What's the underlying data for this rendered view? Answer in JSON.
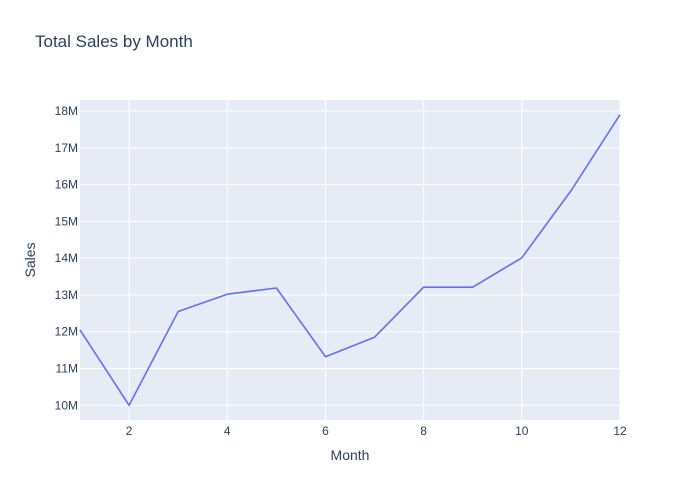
{
  "chart_data": {
    "type": "line",
    "title": "Total Sales by Month",
    "xlabel": "Month",
    "ylabel": "Sales",
    "xlim": [
      1,
      12
    ],
    "ylim": [
      9.6,
      18.3
    ],
    "x_ticks": [
      2,
      4,
      6,
      8,
      10,
      12
    ],
    "x_tick_labels": [
      "2",
      "4",
      "6",
      "8",
      "10",
      "12"
    ],
    "y_ticks": [
      10,
      11,
      12,
      13,
      14,
      15,
      16,
      17,
      18
    ],
    "y_tick_labels": [
      "10M",
      "11M",
      "12M",
      "13M",
      "14M",
      "15M",
      "16M",
      "17M",
      "18M"
    ],
    "y_unit": "millions",
    "grid": true,
    "series": [
      {
        "x": [
          1,
          2,
          3,
          4,
          5,
          6,
          7,
          8,
          9,
          10,
          11,
          12
        ],
        "values": [
          12.05,
          10.0,
          12.55,
          13.02,
          13.19,
          11.32,
          11.85,
          13.21,
          13.21,
          14.01,
          15.83,
          17.9
        ],
        "color": "#636efa"
      }
    ],
    "colors": {
      "plot_bg": "#e5ecf6",
      "grid": "#ffffff",
      "text": "#2a3f5f"
    }
  }
}
